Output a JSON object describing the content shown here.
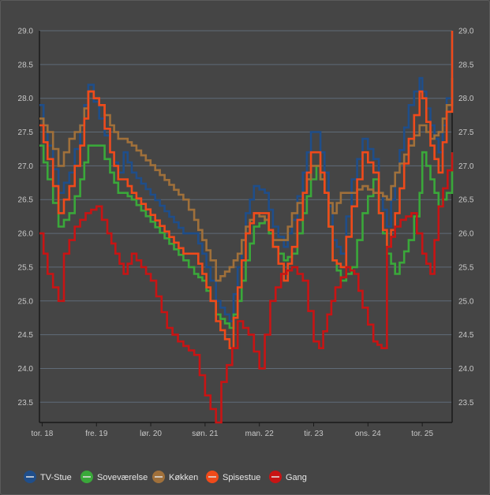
{
  "chart_data": {
    "type": "line",
    "step": true,
    "title": "",
    "xlabel": "",
    "ylabel": "",
    "ylim": [
      23.2,
      29.0
    ],
    "yticks": [
      23.5,
      24.0,
      24.5,
      25.0,
      25.5,
      26.0,
      26.5,
      27.0,
      27.5,
      28.0,
      28.5,
      29.0
    ],
    "ytick_labels": [
      "23.5",
      "24.0",
      "24.5",
      "25.0",
      "25.5",
      "26.0",
      "26.5",
      "27.0",
      "27.5",
      "28.0",
      "28.5",
      "29.0"
    ],
    "x_unit": "days",
    "xlim": [
      -0.05,
      7.55
    ],
    "xticks": [
      0,
      1,
      2,
      3,
      4,
      5,
      6,
      7
    ],
    "xtick_labels": [
      "tor. 18",
      "fre. 19",
      "lør. 20",
      "søn. 21",
      "man. 22",
      "tir. 23",
      "ons. 24",
      "tor. 25"
    ],
    "grid": true,
    "legend_position": "bottom-left",
    "series": [
      {
        "name": "TV-Stue",
        "color": "#1f4e8a",
        "x": [
          -0.05,
          0.1,
          0.3,
          0.5,
          0.7,
          0.85,
          1.05,
          1.25,
          1.4,
          1.5,
          1.65,
          2.6,
          2.8,
          2.95,
          3.1,
          3.2,
          3.45,
          3.6,
          3.75,
          3.9,
          4.1,
          4.25,
          4.45,
          4.6,
          4.8,
          4.95,
          5.05,
          5.2,
          5.35,
          5.5,
          5.7,
          5.9,
          6.1,
          6.2,
          6.35,
          6.5,
          6.75,
          6.95,
          7.0,
          7.15,
          7.3,
          7.45,
          7.55
        ],
        "values": [
          27.9,
          27.3,
          26.6,
          26.9,
          27.6,
          28.2,
          27.7,
          27.2,
          26.9,
          27.2,
          26.9,
          26.0,
          26.0,
          25.7,
          25.3,
          25.0,
          24.7,
          25.5,
          26.3,
          26.7,
          26.6,
          26.1,
          25.8,
          26.2,
          26.9,
          27.5,
          27.5,
          26.9,
          25.9,
          25.7,
          26.8,
          27.4,
          27.1,
          26.6,
          26.1,
          26.9,
          27.9,
          28.3,
          28.1,
          27.6,
          27.2,
          28.0,
          29.0
        ]
      },
      {
        "name": "Soveværelse",
        "color": "#3aa83a",
        "x": [
          -0.05,
          0.1,
          0.3,
          0.5,
          0.7,
          0.85,
          1.05,
          1.25,
          1.4,
          1.5,
          1.65,
          2.6,
          2.8,
          2.95,
          3.1,
          3.2,
          3.45,
          3.6,
          3.75,
          3.9,
          4.1,
          4.25,
          4.45,
          4.6,
          4.8,
          4.95,
          5.05,
          5.2,
          5.35,
          5.5,
          5.7,
          5.9,
          6.1,
          6.2,
          6.35,
          6.5,
          6.75,
          6.95,
          7.0,
          7.15,
          7.3,
          7.45,
          7.55
        ],
        "values": [
          27.3,
          26.8,
          26.1,
          26.3,
          26.8,
          27.3,
          27.3,
          26.9,
          26.6,
          26.6,
          26.5,
          25.6,
          25.4,
          25.3,
          25.0,
          24.8,
          24.6,
          25.0,
          25.6,
          26.1,
          26.2,
          25.8,
          25.6,
          25.7,
          26.3,
          26.8,
          27.0,
          26.6,
          25.6,
          25.3,
          25.5,
          26.3,
          26.8,
          26.3,
          25.7,
          25.4,
          25.9,
          26.6,
          27.2,
          26.8,
          26.4,
          26.6,
          27.2
        ]
      },
      {
        "name": "Køkken",
        "color": "#a0703a",
        "x": [
          -0.05,
          0.1,
          0.3,
          0.5,
          0.7,
          0.85,
          1.05,
          1.25,
          1.4,
          1.5,
          1.65,
          2.6,
          2.8,
          2.95,
          3.1,
          3.2,
          3.45,
          3.6,
          3.75,
          3.9,
          4.1,
          4.25,
          4.45,
          4.6,
          4.8,
          4.95,
          5.05,
          5.2,
          5.35,
          5.5,
          5.7,
          5.9,
          6.1,
          6.2,
          6.35,
          6.5,
          6.75,
          6.95,
          7.0,
          7.15,
          7.3,
          7.45,
          7.55
        ],
        "values": [
          27.7,
          27.5,
          27.0,
          27.4,
          27.6,
          28.1,
          27.9,
          27.6,
          27.4,
          27.4,
          27.3,
          26.5,
          26.2,
          25.9,
          25.6,
          25.3,
          25.5,
          25.7,
          26.1,
          26.3,
          26.2,
          25.9,
          25.9,
          26.3,
          26.6,
          27.0,
          27.0,
          26.6,
          26.3,
          26.6,
          26.6,
          26.7,
          26.6,
          26.6,
          26.5,
          26.9,
          27.3,
          27.6,
          27.6,
          27.4,
          27.5,
          27.9,
          28.3
        ]
      },
      {
        "name": "Spisestue",
        "color": "#f04a1a",
        "x": [
          -0.05,
          0.1,
          0.3,
          0.5,
          0.7,
          0.85,
          1.05,
          1.25,
          1.4,
          1.5,
          1.65,
          2.6,
          2.8,
          2.95,
          3.1,
          3.2,
          3.45,
          3.6,
          3.75,
          3.9,
          4.1,
          4.25,
          4.45,
          4.6,
          4.8,
          4.95,
          5.05,
          5.2,
          5.35,
          5.5,
          5.7,
          5.9,
          6.1,
          6.2,
          6.35,
          6.5,
          6.75,
          6.95,
          7.0,
          7.15,
          7.3,
          7.45,
          7.55
        ],
        "values": [
          27.6,
          27.1,
          26.3,
          26.7,
          27.3,
          28.1,
          27.9,
          27.2,
          26.8,
          26.8,
          26.6,
          25.7,
          25.7,
          25.4,
          25.0,
          24.7,
          24.3,
          25.2,
          26.0,
          26.3,
          26.3,
          25.8,
          25.3,
          25.8,
          26.6,
          27.2,
          27.2,
          26.6,
          25.6,
          25.5,
          26.4,
          27.2,
          26.9,
          26.3,
          25.8,
          26.3,
          27.4,
          28.1,
          28.0,
          27.3,
          26.9,
          27.8,
          29.0
        ]
      },
      {
        "name": "Gang",
        "color": "#c81414",
        "x": [
          -0.05,
          0.1,
          0.3,
          0.4,
          0.6,
          0.8,
          1.0,
          1.2,
          1.35,
          1.5,
          1.65,
          2.0,
          2.3,
          2.5,
          2.8,
          3.0,
          3.2,
          3.3,
          3.5,
          3.6,
          3.8,
          4.0,
          4.2,
          4.4,
          4.6,
          4.8,
          5.0,
          5.1,
          5.25,
          5.4,
          5.6,
          5.75,
          5.9,
          6.1,
          6.25,
          6.35,
          6.5,
          6.6,
          6.8,
          7.0,
          7.15,
          7.3,
          7.55
        ],
        "values": [
          26.0,
          25.4,
          25.0,
          25.7,
          26.1,
          26.3,
          26.4,
          26.0,
          25.7,
          25.4,
          25.7,
          25.3,
          24.6,
          24.4,
          24.2,
          23.6,
          23.2,
          23.8,
          24.3,
          24.7,
          24.5,
          24.0,
          25.0,
          25.4,
          25.5,
          25.3,
          24.4,
          24.3,
          24.8,
          25.2,
          25.5,
          25.4,
          24.9,
          24.4,
          24.3,
          25.8,
          26.1,
          26.2,
          26.3,
          25.7,
          25.4,
          26.4,
          27.2
        ]
      }
    ]
  }
}
